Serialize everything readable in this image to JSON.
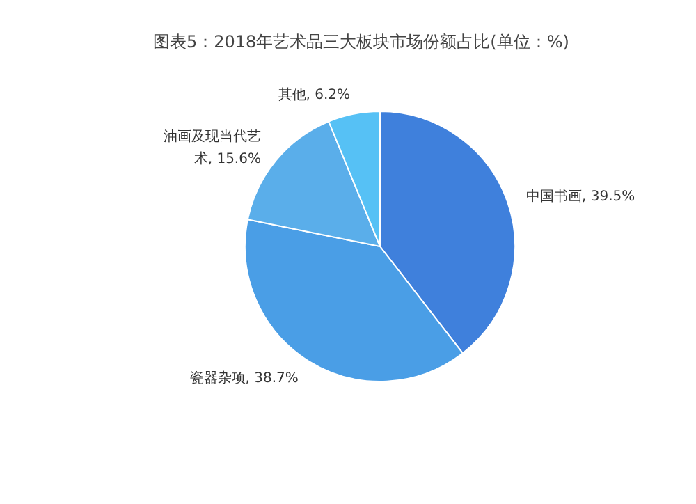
{
  "chart_data": {
    "type": "pie",
    "title": "图表5：2018年艺术品三大板块市场份额占比(单位：%)",
    "categories": [
      "中国书画",
      "瓷器杂项",
      "油画及现当代艺术",
      "其他"
    ],
    "values": [
      39.5,
      38.7,
      15.6,
      6.2
    ],
    "value_labels": [
      "39.5%",
      "38.7%",
      "15.6%",
      "6.2%"
    ],
    "colors": [
      "#3f80dc",
      "#4a9ee6",
      "#5aaeea",
      "#56c1f5"
    ],
    "legend": false
  }
}
